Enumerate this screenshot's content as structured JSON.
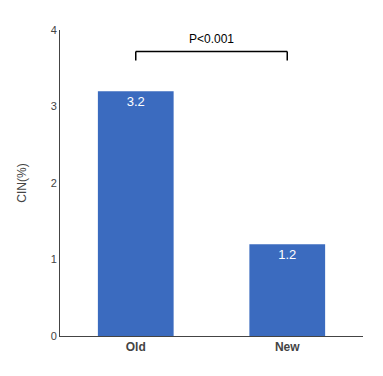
{
  "chart_data": {
    "type": "bar",
    "categories": [
      "Old",
      "New"
    ],
    "values": [
      3.2,
      1.2
    ],
    "color": "#3B6BBF",
    "ylabel": "CIN(%)",
    "ylim": [
      0,
      4
    ],
    "yticks": [
      0,
      1,
      2,
      3,
      4
    ],
    "data_labels": true,
    "annotation": "P<0.001",
    "grid": false
  }
}
